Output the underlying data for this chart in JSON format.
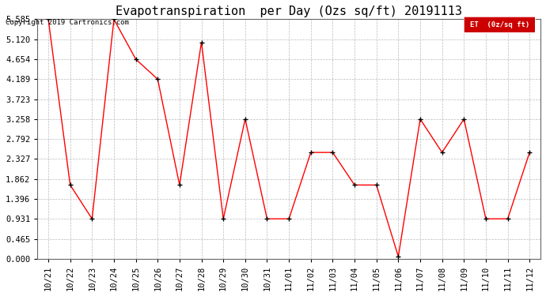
{
  "title": "Evapotranspiration  per Day (Ozs sq/ft) 20191113",
  "copyright": "Copyright 2019 Cartronics.com",
  "legend_label": "ET  (0z/sq ft)",
  "x_labels": [
    "10/21",
    "10/22",
    "10/23",
    "10/24",
    "10/25",
    "10/26",
    "10/27",
    "10/28",
    "10/29",
    "10/30",
    "10/31",
    "11/01",
    "11/02",
    "11/03",
    "11/04",
    "11/05",
    "11/06",
    "11/07",
    "11/08",
    "11/09",
    "11/10",
    "11/11",
    "11/12"
  ],
  "y_values": [
    5.585,
    1.72,
    0.931,
    5.585,
    4.654,
    4.189,
    1.72,
    5.05,
    0.931,
    3.258,
    0.931,
    0.931,
    2.48,
    2.48,
    1.72,
    1.72,
    0.05,
    3.258,
    2.48,
    3.258,
    0.931,
    0.931,
    2.48
  ],
  "ylim_min": 0.0,
  "ylim_max": 5.585,
  "yticks": [
    0.0,
    0.465,
    0.931,
    1.396,
    1.862,
    2.327,
    2.792,
    3.258,
    3.723,
    4.189,
    4.654,
    5.12,
    5.585
  ],
  "line_color": "#ff0000",
  "marker_color": "#000000",
  "bg_color": "#ffffff",
  "grid_color": "#bbbbbb",
  "legend_bg": "#cc0000",
  "legend_text_color": "#ffffff",
  "title_fontsize": 11,
  "tick_fontsize": 7.5,
  "copyright_fontsize": 6.5
}
